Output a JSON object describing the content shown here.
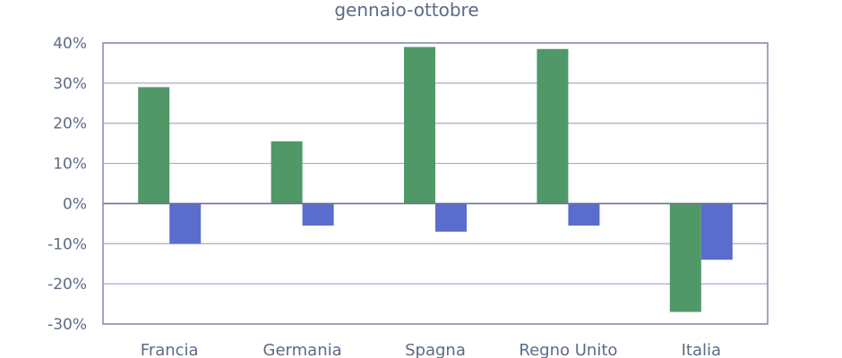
{
  "chart_data": {
    "type": "bar",
    "title": "gennaio-ottobre",
    "xlabel": "",
    "ylabel": "",
    "categories": [
      "Francia",
      "Germania",
      "Spagna",
      "Regno Unito",
      "Italia"
    ],
    "series": [
      {
        "color": "#519868",
        "values": [
          29,
          15.5,
          39,
          38.5,
          -27
        ]
      },
      {
        "color": "#5a6dcc",
        "values": [
          -10,
          -5.5,
          -7,
          -5.5,
          -14
        ]
      }
    ],
    "ylim": [
      -30,
      40
    ],
    "yticks": [
      40,
      30,
      20,
      10,
      0,
      -10,
      -20,
      -30
    ],
    "ytick_labels": [
      "40%",
      "30%",
      "20%",
      "10%",
      "0%",
      "-10%",
      "-20%",
      "-30%"
    ],
    "grid": true,
    "legend": "none",
    "colors": {
      "frame": "#8a8fb0",
      "grid": "#a7abc6",
      "zero_line": "#6b7090",
      "text": "#5c6b86"
    }
  }
}
